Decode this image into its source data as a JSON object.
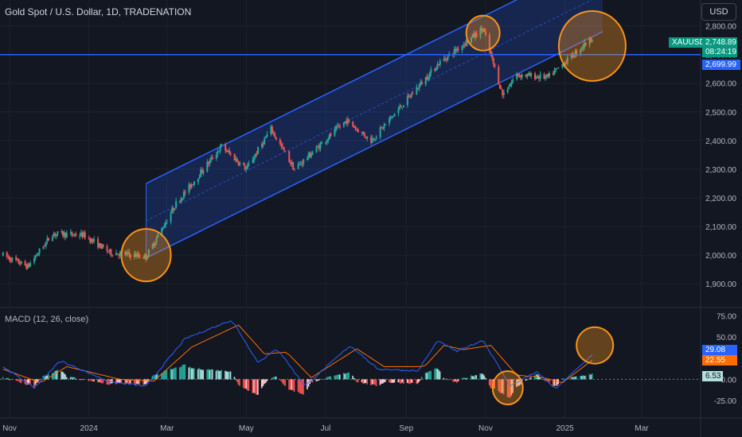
{
  "header": {
    "title": "Gold Spot / U.S. Dollar, 1D, TRADENATION",
    "currency_button": "USD"
  },
  "macd_panel": {
    "label": "MACD (12, 26, close)",
    "tags": {
      "macd": "29.08",
      "signal": "22.55",
      "histogram": "6.53"
    }
  },
  "price_tags": {
    "symbol": "XAUUSD",
    "last_price": "2,748.89",
    "countdown": "08:24:19",
    "line_price": "2,699.99"
  },
  "colors": {
    "background": "#131722",
    "up": "#26a69a",
    "down": "#ef5350",
    "channel": "#2962ff",
    "highlight_circle": "#f7931a",
    "macd_line": "#2962ff",
    "signal_line": "#ff6d00"
  },
  "chart_data": [
    {
      "type": "candlestick",
      "title": "Gold Spot / U.S. Dollar, 1D, TRADENATION",
      "x_tick_labels": [
        "Nov",
        "2024",
        "Mar",
        "May",
        "Jul",
        "Sep",
        "Nov",
        "2025",
        "Mar"
      ],
      "y_tick_labels": [
        "2,800.00",
        "2,700.00",
        "2,600.00",
        "2,500.00",
        "2,400.00",
        "2,300.00",
        "2,200.00",
        "2,100.00",
        "2,000.00",
        "1,900.00"
      ],
      "y_range": [
        1870,
        2835
      ],
      "approx_close_path": [
        {
          "date": "2023-10-27",
          "close": 2000
        },
        {
          "date": "2023-11-15",
          "close": 1960
        },
        {
          "date": "2023-12-04",
          "close": 2075
        },
        {
          "date": "2023-12-28",
          "close": 2070
        },
        {
          "date": "2024-01-17",
          "close": 2010
        },
        {
          "date": "2024-02-14",
          "close": 1995
        },
        {
          "date": "2024-03-08",
          "close": 2180
        },
        {
          "date": "2024-04-12",
          "close": 2380
        },
        {
          "date": "2024-05-01",
          "close": 2300
        },
        {
          "date": "2024-05-20",
          "close": 2440
        },
        {
          "date": "2024-06-07",
          "close": 2300
        },
        {
          "date": "2024-07-17",
          "close": 2470
        },
        {
          "date": "2024-08-05",
          "close": 2400
        },
        {
          "date": "2024-09-26",
          "close": 2670
        },
        {
          "date": "2024-10-30",
          "close": 2790
        },
        {
          "date": "2024-11-14",
          "close": 2560
        },
        {
          "date": "2024-11-25",
          "close": 2630
        },
        {
          "date": "2024-12-19",
          "close": 2620
        },
        {
          "date": "2025-01-22",
          "close": 2760
        }
      ],
      "horizontal_line": 2699.99,
      "channel": {
        "type": "parallel channel",
        "lower": [
          {
            "date": "2024-02-14",
            "price": 1990
          },
          {
            "date": "2025-01-30",
            "price": 2780
          }
        ],
        "upper": [
          {
            "date": "2024-02-14",
            "price": 2250
          },
          {
            "date": "2025-01-30",
            "price": 3040
          }
        ]
      },
      "highlights": [
        {
          "date": "2024-02-14",
          "price": 2000
        },
        {
          "date": "2024-10-30",
          "price": 2775
        },
        {
          "date": "2025-01-22",
          "price": 2730
        }
      ]
    },
    {
      "type": "line",
      "title": "MACD (12, 26, close)",
      "y_tick_labels": [
        "75.00",
        "50.00",
        "25.00",
        "0.00",
        "-25.00"
      ],
      "y_range": [
        -38,
        80
      ],
      "series": [
        {
          "name": "MACD",
          "approx_path": [
            {
              "date": "2023-10-27",
              "value": 15
            },
            {
              "date": "2023-11-20",
              "value": -10
            },
            {
              "date": "2023-12-10",
              "value": 22
            },
            {
              "date": "2024-01-17",
              "value": -3
            },
            {
              "date": "2024-02-14",
              "value": -8
            },
            {
              "date": "2024-03-15",
              "value": 48
            },
            {
              "date": "2024-04-20",
              "value": 70
            },
            {
              "date": "2024-05-10",
              "value": 20
            },
            {
              "date": "2024-05-25",
              "value": 36
            },
            {
              "date": "2024-06-15",
              "value": -8
            },
            {
              "date": "2024-07-20",
              "value": 40
            },
            {
              "date": "2024-08-10",
              "value": 12
            },
            {
              "date": "2024-09-10",
              "value": 10
            },
            {
              "date": "2024-09-25",
              "value": 45
            },
            {
              "date": "2024-10-10",
              "value": 33
            },
            {
              "date": "2024-10-30",
              "value": 46
            },
            {
              "date": "2024-11-20",
              "value": -8
            },
            {
              "date": "2024-12-10",
              "value": 9
            },
            {
              "date": "2024-12-25",
              "value": -11
            },
            {
              "date": "2025-01-22",
              "value": 29
            }
          ]
        },
        {
          "name": "Signal",
          "approx_path": [
            {
              "date": "2023-10-27",
              "value": 12
            },
            {
              "date": "2023-11-25",
              "value": -4
            },
            {
              "date": "2023-12-15",
              "value": 15
            },
            {
              "date": "2024-01-25",
              "value": 0
            },
            {
              "date": "2024-02-20",
              "value": -2
            },
            {
              "date": "2024-03-20",
              "value": 38
            },
            {
              "date": "2024-04-25",
              "value": 64
            },
            {
              "date": "2024-05-15",
              "value": 30
            },
            {
              "date": "2024-06-01",
              "value": 32
            },
            {
              "date": "2024-06-20",
              "value": 2
            },
            {
              "date": "2024-07-25",
              "value": 36
            },
            {
              "date": "2024-08-15",
              "value": 15
            },
            {
              "date": "2024-09-15",
              "value": 15
            },
            {
              "date": "2024-09-30",
              "value": 40
            },
            {
              "date": "2024-10-15",
              "value": 35
            },
            {
              "date": "2024-11-05",
              "value": 40
            },
            {
              "date": "2024-11-25",
              "value": 5
            },
            {
              "date": "2024-12-15",
              "value": 2
            },
            {
              "date": "2024-12-30",
              "value": -4
            },
            {
              "date": "2025-01-22",
              "value": 22.55
            }
          ]
        }
      ],
      "histogram_last": 6.53,
      "highlights": [
        {
          "date": "2024-11-18",
          "value": -10
        },
        {
          "date": "2025-01-24",
          "value": 40
        }
      ]
    }
  ]
}
